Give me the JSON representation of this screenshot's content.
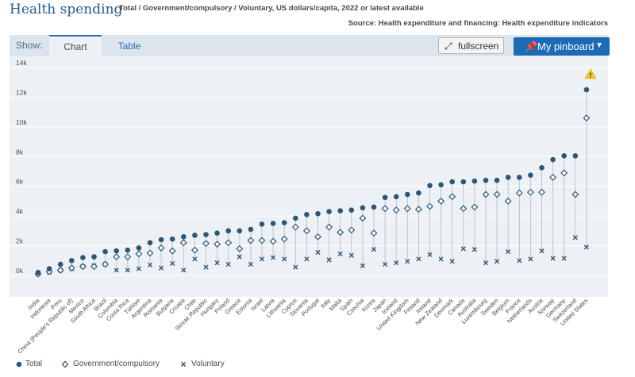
{
  "header": {
    "title": "Health spending",
    "subtitle": "Total / Government/compulsory / Voluntary, US dollars/capita, 2022 or latest available",
    "source": "Source: Health expenditure and financing: Health expenditure indicators"
  },
  "toolbar": {
    "show_label": "Show:",
    "tab_chart": "Chart",
    "tab_table": "Table",
    "fullscreen_label": "fullscreen",
    "pinboard_label": "My pinboard"
  },
  "colors": {
    "total": "#2e5777",
    "government": "#2e5777",
    "voluntary": "#2e5777",
    "warning": "#f3c623",
    "accent": "#1b6bb5"
  },
  "chart_data": {
    "type": "scatter",
    "ylim": [
      0,
      14000
    ],
    "yticks": [
      0,
      2000,
      4000,
      6000,
      8000,
      10000,
      12000,
      14000
    ],
    "ytick_labels": [
      "0k",
      "2k",
      "4k",
      "6k",
      "8k",
      "10k",
      "12k",
      "14k"
    ],
    "grid": true,
    "legend_position": "bottom-left",
    "categories": [
      "India",
      "Indonesia",
      "Peru",
      "China (People's Republic of)",
      "Mexico",
      "South Africa",
      "Brazil",
      "Colombia",
      "Costa Rica",
      "Türkiye",
      "Argentina",
      "Romania",
      "Bulgaria",
      "Croatia",
      "Chile",
      "Slovak Republic",
      "Hungary",
      "Poland",
      "Greece",
      "Estonia",
      "Israel",
      "Latvia",
      "Lithuania",
      "Cyprus",
      "Slovenia",
      "Portugal",
      "Italy",
      "Malta",
      "Spain",
      "Czechia",
      "Korea",
      "Japan",
      "Iceland",
      "United Kingdom",
      "Finland",
      "Ireland",
      "New Zealand",
      "Denmark",
      "Canada",
      "Australia",
      "Luxembourg",
      "Sweden",
      "Belgium",
      "France",
      "Netherlands",
      "Austria",
      "Norway",
      "Germany",
      "Switzerland",
      "United States"
    ],
    "series": [
      {
        "name": "Total",
        "marker": "circle",
        "values": [
          200,
          450,
          750,
          1000,
          1200,
          1250,
          1600,
          1650,
          1700,
          1850,
          2200,
          2400,
          2450,
          2600,
          2700,
          2750,
          2850,
          3000,
          3000,
          3100,
          3450,
          3500,
          3550,
          3850,
          4100,
          4150,
          4300,
          4350,
          4400,
          4550,
          4600,
          5250,
          5300,
          5450,
          5550,
          6050,
          6100,
          6300,
          6300,
          6350,
          6400,
          6400,
          6600,
          6600,
          6750,
          7250,
          7800,
          8050,
          8050,
          12500
        ]
      },
      {
        "name": "Government/compulsory",
        "marker": "diamond",
        "values": [
          100,
          250,
          350,
          500,
          600,
          600,
          750,
          1250,
          1250,
          1450,
          1500,
          1850,
          1650,
          2200,
          1700,
          2150,
          2100,
          2200,
          1800,
          2350,
          2350,
          2300,
          2450,
          3250,
          3000,
          2600,
          3250,
          2900,
          3050,
          3850,
          2850,
          4500,
          4400,
          4500,
          4450,
          4650,
          5000,
          5300,
          4500,
          4600,
          5450,
          5450,
          5000,
          5550,
          5600,
          5600,
          6600,
          6900,
          5450,
          10600
        ]
      },
      {
        "name": "Voluntary",
        "marker": "cross",
        "values": [
          100,
          200,
          350,
          450,
          600,
          650,
          750,
          350,
          350,
          450,
          700,
          500,
          800,
          350,
          1100,
          550,
          850,
          750,
          1250,
          750,
          1100,
          1200,
          1100,
          550,
          1100,
          1550,
          1050,
          1450,
          1350,
          650,
          1750,
          750,
          850,
          950,
          1100,
          1400,
          1100,
          950,
          1800,
          1750,
          850,
          950,
          1600,
          1000,
          1100,
          1650,
          1150,
          1150,
          2550,
          1900
        ]
      }
    ]
  }
}
